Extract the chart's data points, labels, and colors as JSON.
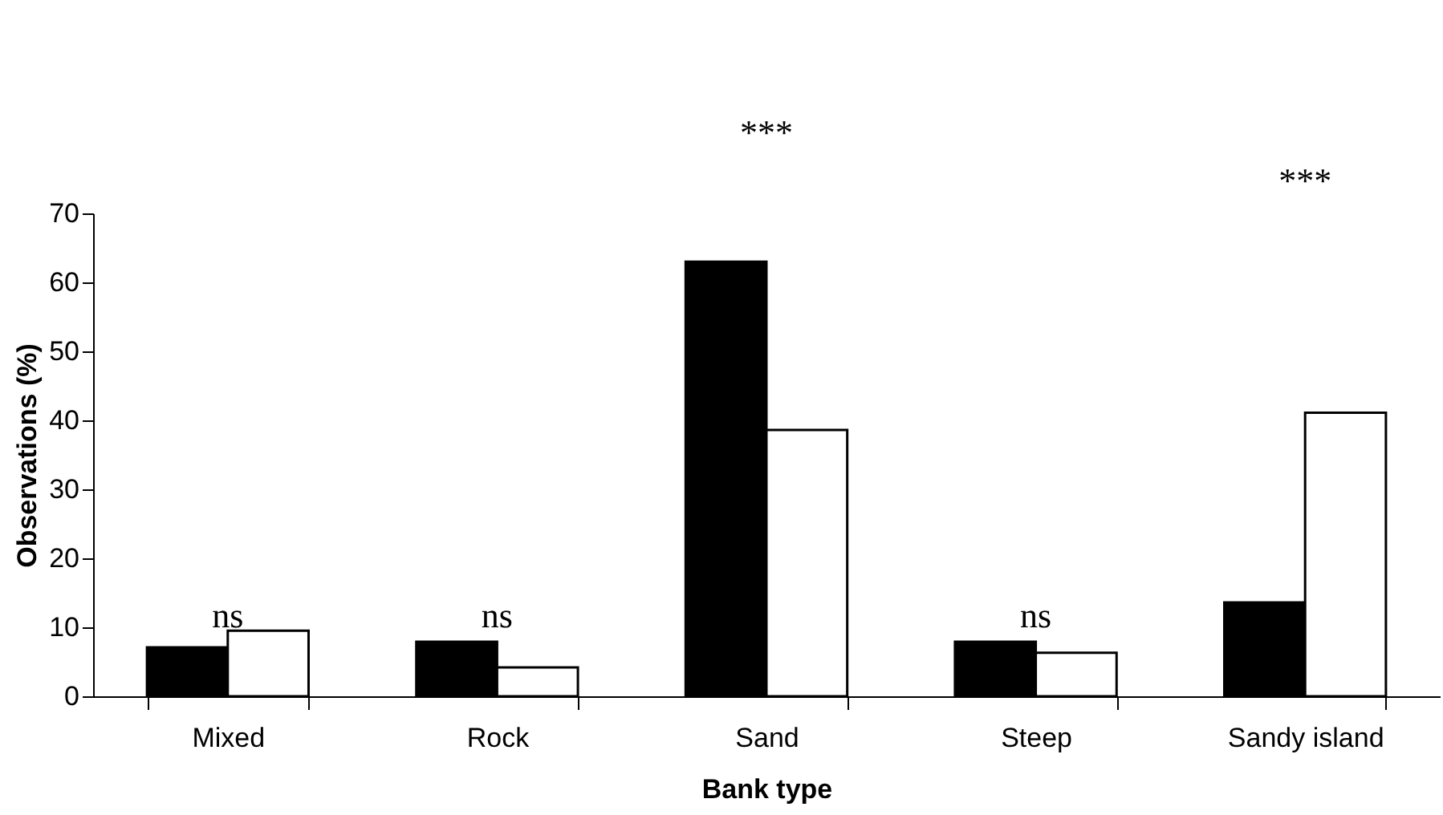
{
  "chart_data": {
    "type": "bar",
    "xlabel": "Bank type",
    "ylabel": "Observations (%)",
    "categories": [
      "Mixed",
      "Rock",
      "Sand",
      "Steep",
      "Sandy island"
    ],
    "series": [
      {
        "color": "#000000",
        "values": [
          7.1,
          7.9,
          63.0,
          7.9,
          13.6
        ]
      },
      {
        "color": "#ffffff",
        "values": [
          9.5,
          4.2,
          38.6,
          6.3,
          41.1
        ]
      }
    ],
    "ylim": [
      0,
      70
    ],
    "yticks": [
      0,
      10,
      20,
      30,
      40,
      50,
      60,
      70
    ],
    "grid": false,
    "legend": false,
    "annotations": [
      "ns",
      "ns",
      "***",
      "ns",
      "***"
    ]
  }
}
